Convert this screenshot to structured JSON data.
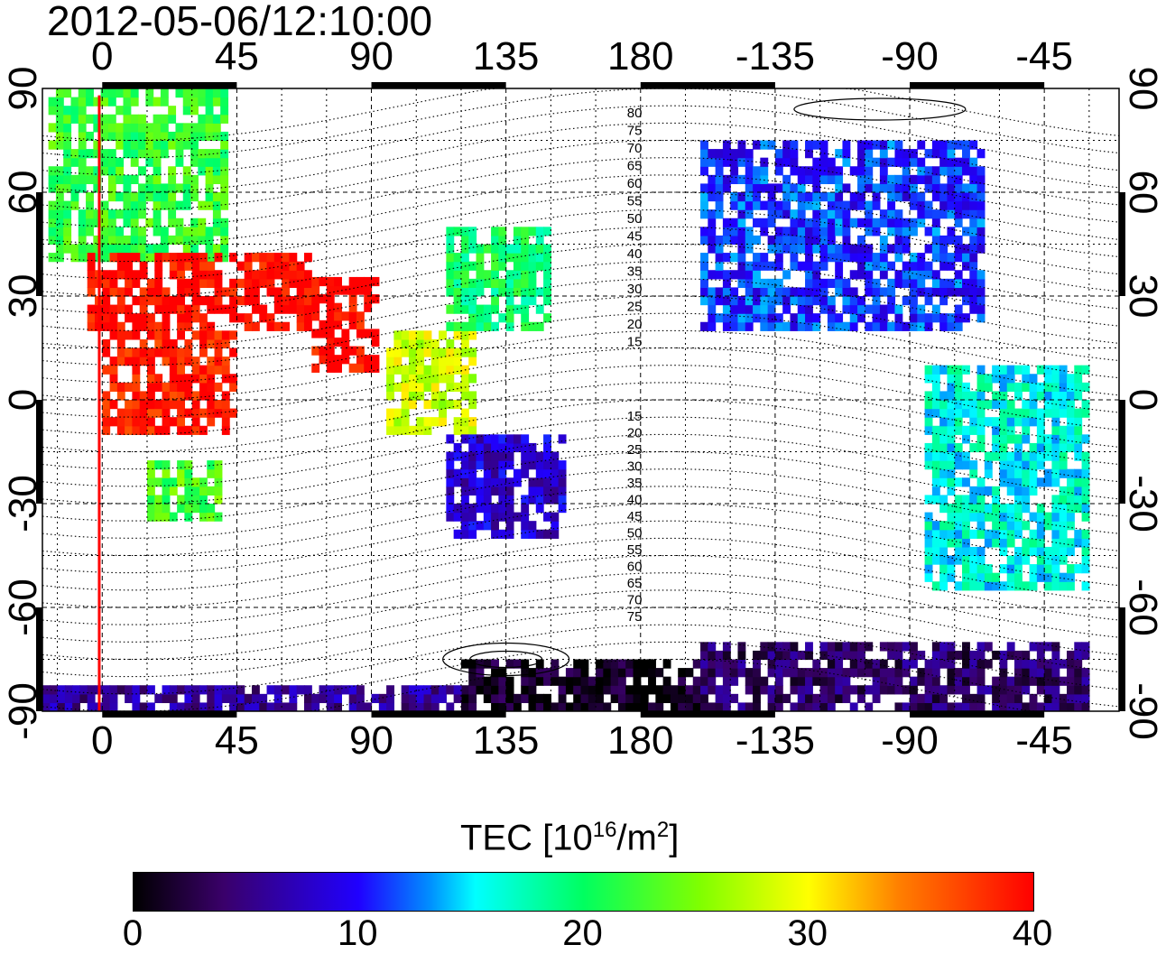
{
  "title": "2012-05-06/12:10:00",
  "lon_ticks_top": [
    "0",
    "45",
    "90",
    "135",
    "180",
    "-135",
    "-90",
    "-45"
  ],
  "lon_ticks_bottom": [
    "0",
    "45",
    "90",
    "135",
    "180",
    "-135",
    "-90",
    "-45"
  ],
  "lat_ticks": [
    "90",
    "60",
    "30",
    "0",
    "-30",
    "-60",
    "-90"
  ],
  "contour_labels_north": [
    "80",
    "75",
    "70",
    "65",
    "60",
    "55",
    "50",
    "45",
    "40",
    "35",
    "30",
    "25",
    "20",
    "15"
  ],
  "contour_labels_south": [
    "15",
    "20",
    "25",
    "30",
    "35",
    "40",
    "45",
    "50",
    "55",
    "60",
    "65",
    "70",
    "75"
  ],
  "colorbar": {
    "label_main": "TEC  [10",
    "label_exp": "16",
    "label_mid": "/m",
    "label_exp2": "2",
    "label_end": "]",
    "ticks": [
      "0",
      "10",
      "20",
      "30",
      "40"
    ],
    "min": 0,
    "max": 40,
    "colors": [
      "#000000",
      "#3a006a",
      "#2000ff",
      "#0090ff",
      "#00ffff",
      "#00ff60",
      "#80ff00",
      "#ffff00",
      "#ff8000",
      "#ff0000"
    ]
  },
  "terminator_color": "#ff0000",
  "map": {
    "lon_range": [
      -20,
      340
    ],
    "lat_range": [
      -90,
      90
    ],
    "tec_regions": [
      {
        "name": "europe",
        "lon": [
          -18,
          40
        ],
        "lat": [
          40,
          88
        ],
        "tec": 22
      },
      {
        "name": "north-africa",
        "lon": [
          -5,
          70
        ],
        "lat": [
          20,
          42
        ],
        "tec": 40
      },
      {
        "name": "central-africa",
        "lon": [
          0,
          45
        ],
        "lat": [
          -10,
          20
        ],
        "tec": 39
      },
      {
        "name": "south-africa",
        "lon": [
          15,
          38
        ],
        "lat": [
          -35,
          -18
        ],
        "tec": 23
      },
      {
        "name": "india",
        "lon": [
          70,
          92
        ],
        "lat": [
          8,
          35
        ],
        "tec": 40
      },
      {
        "name": "se-asia",
        "lon": [
          95,
          125
        ],
        "lat": [
          -10,
          20
        ],
        "tec": 28
      },
      {
        "name": "east-asia",
        "lon": [
          115,
          150
        ],
        "lat": [
          20,
          50
        ],
        "tec": 20
      },
      {
        "name": "australia",
        "lon": [
          115,
          155
        ],
        "lat": [
          -40,
          -12
        ],
        "tec": 8
      },
      {
        "name": "north-america",
        "lon": [
          200,
          295
        ],
        "lat": [
          20,
          75
        ],
        "tec": 11
      },
      {
        "name": "south-america",
        "lon": [
          275,
          330
        ],
        "lat": [
          -55,
          10
        ],
        "tec": 16
      },
      {
        "name": "antarctica-east",
        "lon": [
          120,
          200
        ],
        "lat": [
          -90,
          -75
        ],
        "tec": 1
      },
      {
        "name": "antarctica-west",
        "lon": [
          200,
          330
        ],
        "lat": [
          -90,
          -72
        ],
        "tec": 4
      },
      {
        "name": "antarctica-coast",
        "lon": [
          -20,
          120
        ],
        "lat": [
          -90,
          -83
        ],
        "tec": 6
      }
    ]
  }
}
